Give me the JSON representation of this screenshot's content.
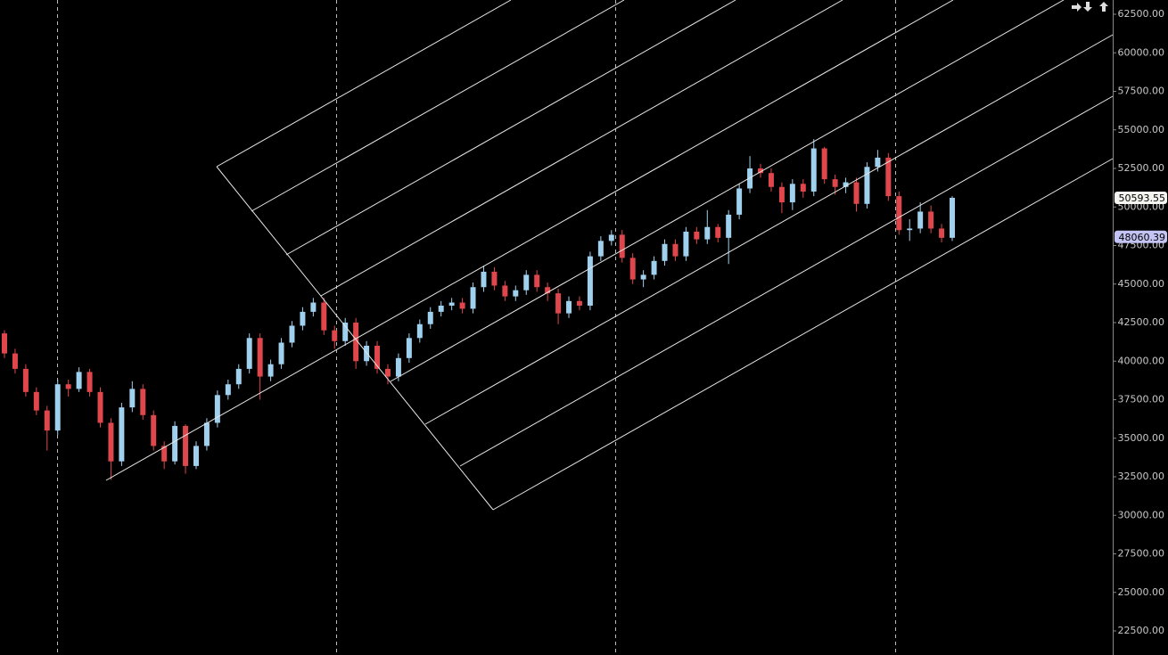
{
  "chart_data": {
    "type": "candlestick",
    "ylim": [
      20940,
      63425
    ],
    "yticks": [
      {
        "value": 22500,
        "label": "22500.00"
      },
      {
        "value": 25000,
        "label": "25000.00"
      },
      {
        "value": 27500,
        "label": "27500.00"
      },
      {
        "value": 30000,
        "label": "30000.00"
      },
      {
        "value": 32500,
        "label": "32500.00"
      },
      {
        "value": 35000,
        "label": "35000.00"
      },
      {
        "value": 37500,
        "label": "37500.00"
      },
      {
        "value": 40000,
        "label": "40000.00"
      },
      {
        "value": 42500,
        "label": "42500.00"
      },
      {
        "value": 45000,
        "label": "45000.00"
      },
      {
        "value": 47500,
        "label": "47500.00"
      },
      {
        "value": 50000,
        "label": "50000.00"
      },
      {
        "value": 52500,
        "label": "52500.00"
      },
      {
        "value": 55000,
        "label": "55000.00"
      },
      {
        "value": 57500,
        "label": "57500.00"
      },
      {
        "value": 60000,
        "label": "60000.00"
      },
      {
        "value": 62500,
        "label": "62500.00"
      }
    ],
    "up_color": "#9fd0ee",
    "down_color": "#e0474c",
    "open": [
      41800,
      40500,
      39500,
      38000,
      36800,
      35500,
      38500,
      38200,
      39300,
      38000,
      36000,
      33500,
      37000,
      38200,
      36500,
      34500,
      33500,
      35800,
      33200,
      34500,
      36000,
      37800,
      38500,
      39500,
      41500,
      39000,
      39800,
      41200,
      42300,
      43200,
      43800,
      42000,
      41300,
      42500,
      40000,
      41000,
      39500,
      39000,
      40200,
      41500,
      42400,
      43200,
      43600,
      43800,
      43400,
      44800,
      45800,
      44900,
      44200,
      44600,
      45600,
      44800,
      44400,
      43100,
      43900,
      43600,
      46800,
      47800,
      48200,
      46700,
      45300,
      45600,
      46500,
      47600,
      46800,
      48400,
      47900,
      48700,
      48000,
      49500,
      51200,
      52500,
      52200,
      51300,
      50300,
      51500,
      51000,
      53800,
      51800,
      51300,
      51600,
      50200,
      52600,
      53200,
      50700,
      48500,
      48600,
      49700,
      48600,
      48000
    ],
    "high": [
      42000,
      40800,
      39800,
      38300,
      37100,
      38800,
      38800,
      39600,
      39500,
      38300,
      36300,
      37300,
      38700,
      38500,
      36800,
      34800,
      36100,
      35900,
      34800,
      36300,
      38100,
      38800,
      39800,
      41800,
      41800,
      40100,
      41500,
      42600,
      43500,
      44100,
      44100,
      42300,
      42800,
      42800,
      41300,
      41300,
      39800,
      40500,
      41800,
      42700,
      43500,
      43900,
      44100,
      44100,
      45100,
      46200,
      46100,
      45200,
      44900,
      45900,
      45900,
      45100,
      44700,
      44200,
      44200,
      47100,
      48100,
      48500,
      48500,
      47000,
      45900,
      46800,
      47900,
      47900,
      48700,
      48700,
      49800,
      48900,
      49800,
      51500,
      53300,
      52800,
      52500,
      51600,
      51800,
      51800,
      54400,
      53900,
      52100,
      51900,
      51900,
      52900,
      53700,
      53500,
      51000,
      49200,
      50300,
      50100,
      48900,
      50700
    ],
    "low": [
      40200,
      39200,
      37700,
      36500,
      34200,
      35200,
      37700,
      38000,
      37700,
      35700,
      32300,
      33200,
      36700,
      36200,
      34200,
      33000,
      33300,
      32700,
      33000,
      34200,
      35700,
      37500,
      38200,
      39200,
      37500,
      38700,
      39500,
      40900,
      42000,
      42900,
      41700,
      40800,
      41000,
      39500,
      39700,
      39200,
      38500,
      38700,
      39900,
      41200,
      42100,
      42900,
      43300,
      43100,
      43100,
      44500,
      44600,
      43900,
      43900,
      44300,
      44500,
      43900,
      42400,
      42800,
      43300,
      43300,
      46500,
      47500,
      46400,
      45000,
      44800,
      45300,
      46200,
      46500,
      46500,
      47600,
      47600,
      47700,
      46300,
      49200,
      50900,
      51900,
      51000,
      49600,
      49800,
      50600,
      50700,
      51500,
      50800,
      50900,
      49700,
      49900,
      52300,
      50400,
      48200,
      47800,
      48300,
      48300,
      47700,
      47800
    ],
    "close": [
      40500,
      39500,
      38000,
      36800,
      35500,
      38500,
      38200,
      39300,
      38000,
      36000,
      33500,
      37000,
      38200,
      36500,
      34500,
      33500,
      35800,
      33200,
      34500,
      36000,
      37800,
      38500,
      39500,
      41500,
      39000,
      39800,
      41200,
      42300,
      43200,
      43800,
      42000,
      41300,
      42500,
      40000,
      41000,
      39500,
      39000,
      40200,
      41500,
      42400,
      43200,
      43600,
      43800,
      43400,
      44800,
      45800,
      44900,
      44200,
      44600,
      45600,
      44800,
      44400,
      43100,
      43900,
      43600,
      46800,
      47800,
      48200,
      46700,
      45300,
      45600,
      46500,
      47600,
      46800,
      48400,
      47900,
      48700,
      48000,
      49500,
      51200,
      52500,
      52200,
      51300,
      50300,
      51500,
      51000,
      53800,
      51800,
      51300,
      51600,
      50200,
      52600,
      53200,
      50700,
      48500,
      48600,
      49700,
      48600,
      48000,
      50593.55
    ],
    "price_markers": [
      {
        "value": 50593.55,
        "color": "#f4f4f0"
      },
      {
        "value": 48060.39,
        "color": "#c4c4f4"
      }
    ]
  }
}
